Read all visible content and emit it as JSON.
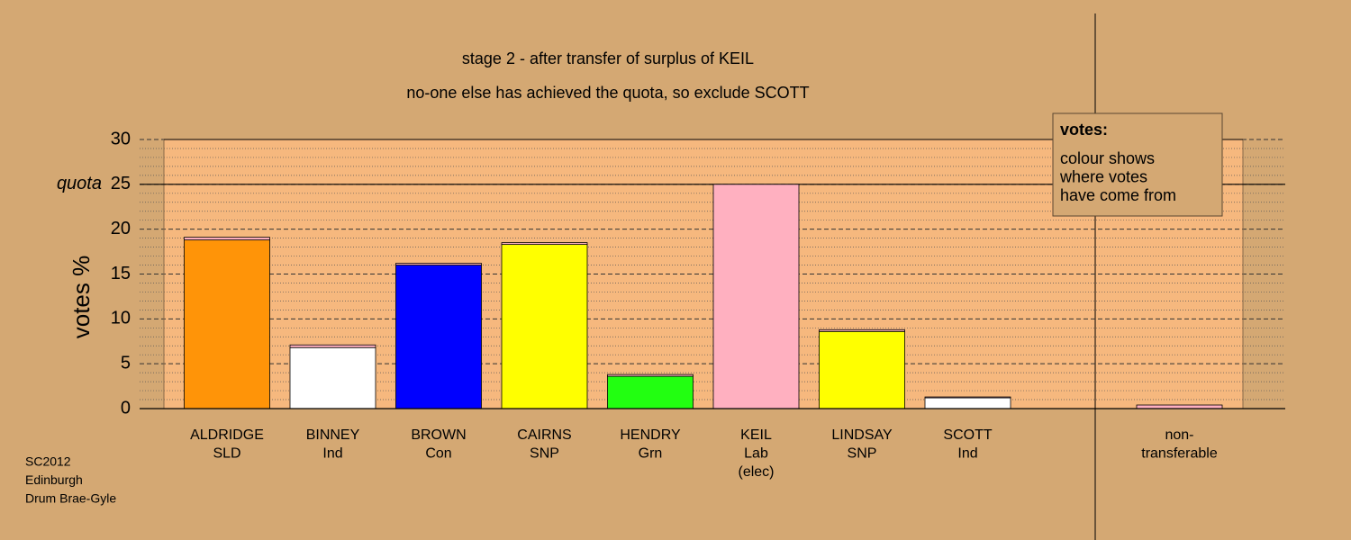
{
  "chart_data": {
    "type": "stacked_bar",
    "title": "stage 2 - after transfer of surplus of KEIL",
    "subtitle": "no-one else has achieved the quota, so exclude SCOTT",
    "ylabel": "votes %",
    "categories": [
      [
        "ALDRIDGE",
        "SLD"
      ],
      [
        "BINNEY",
        "Ind"
      ],
      [
        "BROWN",
        "Con"
      ],
      [
        "CAIRNS",
        "SNP"
      ],
      [
        "HENDRY",
        "Grn"
      ],
      [
        "KEIL",
        "Lab",
        "(elec)"
      ],
      [
        "LINDSAY",
        "SNP"
      ],
      [
        "SCOTT",
        "Ind"
      ],
      null,
      [
        "non-",
        "transferable"
      ]
    ],
    "series": [
      {
        "colors": [
          "#ff9408",
          "#ffffff",
          "#0000ff",
          "#ffff00",
          "#22ff11",
          "#ffb0c0",
          "#ffff00",
          "#ffffff",
          null,
          "#ffb0c0"
        ],
        "values": [
          18.8,
          6.8,
          16.0,
          18.3,
          3.6,
          25,
          8.6,
          1.2,
          null,
          0
        ]
      },
      {
        "color": "#ffb0c0",
        "values": [
          0.3,
          0.3,
          0.2,
          0.2,
          0.2,
          0,
          0.2,
          0.1,
          null,
          0.4
        ]
      }
    ],
    "ylim": [
      0,
      30
    ],
    "yticks": [
      0,
      5,
      10,
      15,
      20,
      25,
      30
    ],
    "minor_yticks": [
      1,
      2,
      3,
      4,
      6,
      7,
      8,
      9,
      11,
      12,
      13,
      14,
      16,
      17,
      18,
      19,
      21,
      22,
      23,
      24,
      26,
      27,
      28,
      29
    ],
    "quota": {
      "label": "quota",
      "value": 25
    },
    "legend": {
      "title": "votes:",
      "lines": [
        "colour shows",
        "where votes",
        "have come from"
      ]
    },
    "footer": [
      "SC2012",
      "Edinburgh",
      "Drum Brae-Gyle"
    ]
  }
}
